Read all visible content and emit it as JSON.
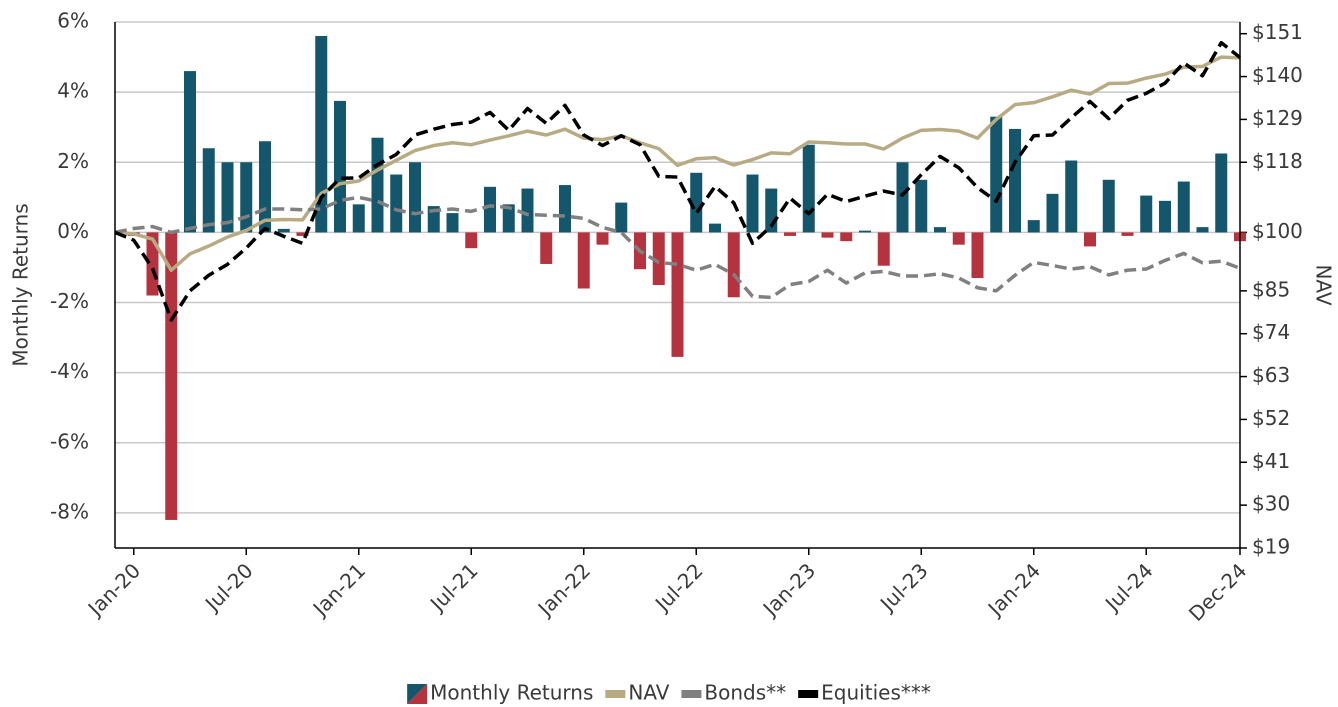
{
  "chart_data": {
    "type": "combo",
    "ylabel": "Monthly Returns",
    "y2label": "NAV",
    "ylim": [
      -9,
      6
    ],
    "yticks": [
      {
        "value": 6,
        "label": "6%"
      },
      {
        "value": 4,
        "label": "4%"
      },
      {
        "value": 2,
        "label": "2%"
      },
      {
        "value": 0,
        "label": "0%"
      },
      {
        "value": -2,
        "label": "-2%"
      },
      {
        "value": -4,
        "label": "-4%"
      },
      {
        "value": -6,
        "label": "-6%"
      },
      {
        "value": -8,
        "label": "-8%"
      }
    ],
    "y2lim": [
      19,
      154
    ],
    "y2ticks": [
      {
        "value": 151,
        "label": "$151"
      },
      {
        "value": 140,
        "label": "$140"
      },
      {
        "value": 129,
        "label": "$129"
      },
      {
        "value": 118,
        "label": "$118"
      },
      {
        "value": 100,
        "label": "$100"
      },
      {
        "value": 85,
        "label": "$85"
      },
      {
        "value": 74,
        "label": "$74"
      },
      {
        "value": 63,
        "label": "$63"
      },
      {
        "value": 52,
        "label": "$52"
      },
      {
        "value": 41,
        "label": "$41"
      },
      {
        "value": 30,
        "label": "$30"
      },
      {
        "value": 19,
        "label": "$19"
      }
    ],
    "grid": true,
    "legend": "bottom",
    "categories": [
      null,
      "Jan-20",
      null,
      null,
      null,
      null,
      null,
      "Jul-20",
      null,
      null,
      null,
      null,
      null,
      "Jan-21",
      null,
      null,
      null,
      null,
      null,
      "Jul-21",
      null,
      null,
      null,
      null,
      null,
      "Jan-22",
      null,
      null,
      null,
      null,
      null,
      "Jul-22",
      null,
      null,
      null,
      null,
      null,
      "Jan-23",
      null,
      null,
      null,
      null,
      null,
      "Jul-23",
      null,
      null,
      null,
      null,
      null,
      "Jan-24",
      null,
      null,
      null,
      null,
      null,
      "Jul-24",
      null,
      null,
      null,
      null,
      "Dec-24"
    ],
    "series": [
      {
        "name": "Monthly Returns",
        "type": "bar",
        "color": "#14566b",
        "negative_color": "#b5333f",
        "values": [
          null,
          -0.1,
          -1.8,
          -8.2,
          4.6,
          2.4,
          2.0,
          2.0,
          2.6,
          0.1,
          -0.1,
          5.6,
          3.75,
          0.8,
          2.7,
          1.65,
          2.0,
          0.75,
          0.55,
          -0.45,
          1.3,
          0.8,
          1.25,
          -0.9,
          1.35,
          -1.6,
          -0.35,
          0.85,
          -1.05,
          -1.5,
          -3.55,
          1.7,
          0.25,
          -1.85,
          1.65,
          1.25,
          -0.1,
          2.5,
          -0.15,
          -0.25,
          0.05,
          -0.95,
          2.0,
          1.5,
          0.15,
          -0.35,
          -1.3,
          3.3,
          2.95,
          0.35,
          1.1,
          2.05,
          -0.4,
          1.5,
          -0.1,
          1.05,
          0.9,
          1.45,
          0.15,
          2.25,
          -0.25
        ]
      },
      {
        "name": "NAV",
        "type": "line",
        "axis": "y2",
        "color": "#b8ab84",
        "dashed": false,
        "values": [
          100,
          99.6,
          98.3,
          90.3,
          94.5,
          96.5,
          98.8,
          100.5,
          103.1,
          103.3,
          103.2,
          110,
          112.5,
          113.2,
          116,
          118.5,
          121,
          122.3,
          123,
          122.5,
          123.7,
          124.8,
          126,
          125,
          126.5,
          124.2,
          123.8,
          124.8,
          123,
          121.5,
          117.2,
          118.9,
          119.2,
          117.3,
          118.7,
          120.4,
          120.2,
          123.2,
          123,
          122.7,
          122.7,
          121.4,
          124.2,
          126.2,
          126.4,
          126,
          124.2,
          129,
          132.8,
          133.3,
          134.8,
          136.5,
          135.5,
          138.2,
          138.3,
          139.6,
          140.6,
          142.4,
          142.6,
          145,
          144.8
        ]
      },
      {
        "name": "Bonds**",
        "type": "line",
        "axis": "y2",
        "color": "#808080",
        "dashed": true,
        "values": [
          100,
          101,
          101.5,
          100,
          101,
          102,
          102.5,
          104,
          106,
          106,
          105.8,
          106,
          108.2,
          109,
          108,
          105.8,
          104.8,
          105.6,
          106,
          105.4,
          106.8,
          106.4,
          104.6,
          104.4,
          104.2,
          103.6,
          101.3,
          100,
          95.2,
          92.3,
          91.8,
          90.3,
          91.8,
          89.2,
          83.6,
          83.3,
          86.6,
          87.4,
          90.3,
          87,
          89.6,
          90,
          88.8,
          88.8,
          89.4,
          88.3,
          85.8,
          85,
          89,
          92.3,
          91.5,
          90.6,
          91.2,
          89.1,
          90.3,
          90.6,
          92.8,
          94.6,
          92.2,
          92.6,
          90.8
        ]
      },
      {
        "name": "Equities***",
        "type": "line",
        "axis": "y2",
        "color": "#000000",
        "dashed": true,
        "values": [
          100,
          98,
          90.8,
          77.5,
          85,
          89,
          91.8,
          96,
          101,
          99,
          97.2,
          109,
          113.9,
          114,
          117.4,
          120,
          125,
          126.5,
          127.7,
          128.3,
          130.8,
          126.2,
          131.8,
          128,
          132.6,
          125,
          122.3,
          124.8,
          122.5,
          114.4,
          114.2,
          104.9,
          111.8,
          107.6,
          97.2,
          101.6,
          108.8,
          104.8,
          109.8,
          107.9,
          109.3,
          110.6,
          109.6,
          114.8,
          119.5,
          116.6,
          111.5,
          108,
          118,
          124.8,
          125,
          129.4,
          133.6,
          129.2,
          133.9,
          135.7,
          138.3,
          143.5,
          140.2,
          148.7,
          144.9
        ]
      }
    ]
  }
}
